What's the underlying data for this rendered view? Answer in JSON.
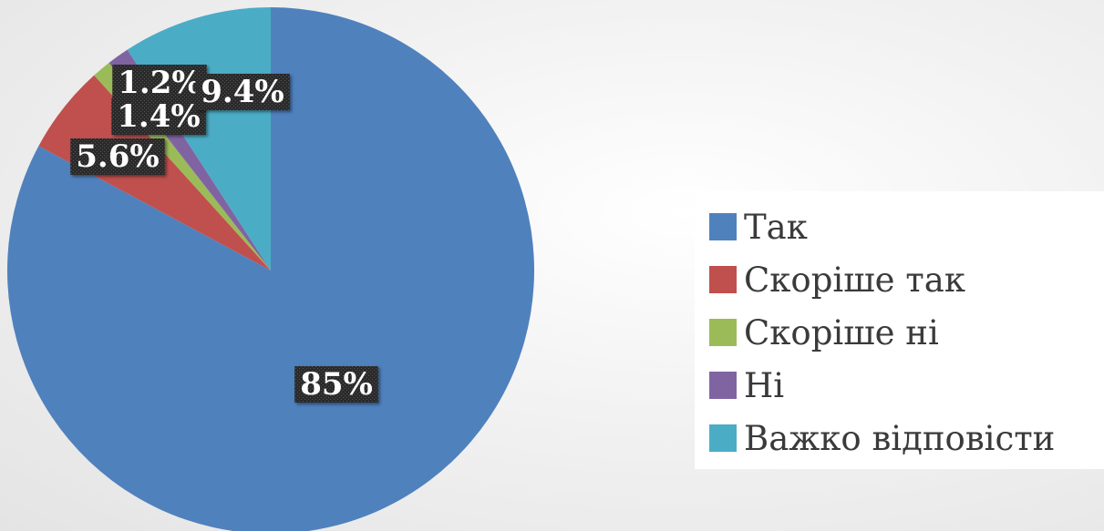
{
  "chart_data": {
    "type": "pie",
    "title": "",
    "slices": [
      {
        "label": "Так",
        "value": 85,
        "display": "85%",
        "color": "#4f81bd"
      },
      {
        "label": "Скоріше так",
        "value": 5.6,
        "display": "5.6%",
        "color": "#c0504d"
      },
      {
        "label": "Скоріше ні",
        "value": 1.2,
        "display": "1.2%",
        "color": "#9bbb59"
      },
      {
        "label": "Ні",
        "value": 1.4,
        "display": "1.4%",
        "color": "#8064a2"
      },
      {
        "label": "Важко відповісти",
        "value": 9.4,
        "display": "9.4%",
        "color": "#4bacc6"
      }
    ],
    "start_angle_deg": 0,
    "direction": "clockwise",
    "data_labels": true,
    "legend_position": "right"
  }
}
